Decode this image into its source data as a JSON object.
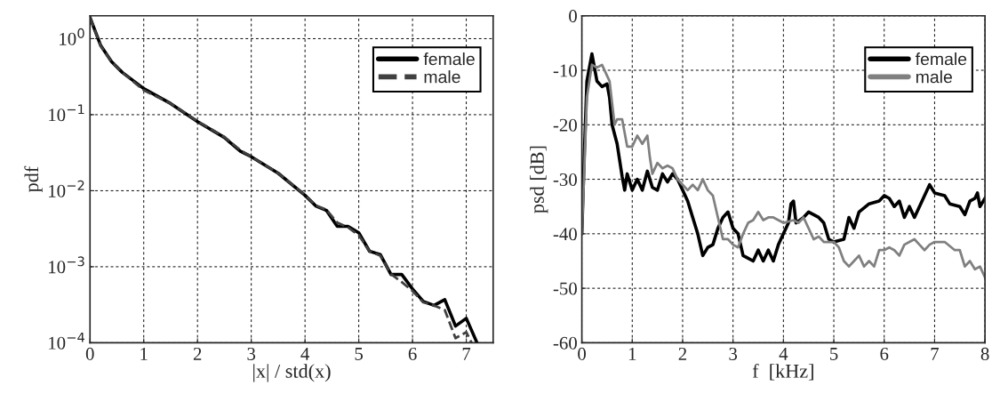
{
  "chart_data": [
    {
      "type": "line",
      "xlabel": "|x| / std(x)",
      "ylabel": "pdf",
      "log": "y",
      "grid": true,
      "legend": "top right",
      "xlim": [
        0,
        7.5
      ],
      "ylim": [
        0.0001,
        2
      ],
      "xticks": [
        0,
        1,
        2,
        3,
        4,
        5,
        6,
        7
      ],
      "yticks": [
        {
          "value": 1,
          "label": "10$^{0}$"
        },
        {
          "value": 0.1,
          "label": "10$^{−1}$"
        },
        {
          "value": 0.01,
          "label": "10$^{−2}$"
        },
        {
          "value": 0.001,
          "label": "10$^{−3}$"
        },
        {
          "value": 0.0001,
          "label": "10$^{−4}$"
        }
      ],
      "series": [
        {
          "name": "female",
          "color": "#000000",
          "line_style": "solid",
          "x": [
            0,
            0.2,
            0.4,
            0.6,
            1.0,
            1.5,
            2.0,
            2.5,
            2.8,
            3.0,
            3.5,
            4.0,
            4.2,
            4.4,
            4.6,
            4.8,
            5.0,
            5.2,
            5.4,
            5.6,
            5.8,
            6.0,
            6.2,
            6.4,
            6.6,
            6.8,
            7.0,
            7.2
          ],
          "values": [
            1.9,
            0.81,
            0.5,
            0.36,
            0.22,
            0.14,
            0.081,
            0.05,
            0.033,
            0.028,
            0.017,
            0.0087,
            0.0063,
            0.0055,
            0.0034,
            0.0034,
            0.0028,
            0.0016,
            0.00145,
            0.00079,
            0.00079,
            0.00051,
            0.00035,
            0.00031,
            0.00037,
            0.000166,
            0.00021,
            0.0001
          ]
        },
        {
          "name": "male",
          "color": "#404040",
          "line_style": "dashed",
          "x": [
            0,
            0.2,
            0.4,
            0.6,
            1.0,
            1.5,
            2.0,
            2.5,
            2.8,
            3.0,
            3.5,
            4.0,
            4.2,
            4.4,
            4.6,
            4.8,
            5.0,
            5.2,
            5.4,
            5.6,
            5.8,
            6.0,
            6.2,
            6.4,
            6.6,
            6.8,
            7.0,
            7.1
          ],
          "values": [
            1.9,
            0.8,
            0.5,
            0.36,
            0.21,
            0.14,
            0.082,
            0.051,
            0.034,
            0.028,
            0.017,
            0.0088,
            0.0064,
            0.0056,
            0.0038,
            0.0033,
            0.0026,
            0.0016,
            0.0014,
            0.0008,
            0.00063,
            0.00048,
            0.00034,
            0.00031,
            0.00027,
            0.000115,
            0.000138,
            0.0001
          ]
        }
      ]
    },
    {
      "type": "line",
      "xlabel": "f  [kHz]",
      "ylabel": "psd [dB]",
      "grid": true,
      "legend": "top right",
      "xlim": [
        0,
        8
      ],
      "ylim": [
        -60,
        0
      ],
      "xticks": [
        0,
        1,
        2,
        3,
        4,
        5,
        6,
        7,
        8
      ],
      "yticks": [
        -60,
        -50,
        -40,
        -30,
        -20,
        -10,
        0
      ],
      "series": [
        {
          "name": "female",
          "color": "#000000",
          "line_style": "solid",
          "x": [
            0,
            0.05,
            0.1,
            0.2,
            0.3,
            0.4,
            0.5,
            0.55,
            0.6,
            0.7,
            0.8,
            0.85,
            0.9,
            1.0,
            1.1,
            1.2,
            1.3,
            1.4,
            1.5,
            1.6,
            1.7,
            1.8,
            1.9,
            2.0,
            2.1,
            2.2,
            2.3,
            2.4,
            2.5,
            2.6,
            2.7,
            2.8,
            2.9,
            3.0,
            3.1,
            3.2,
            3.3,
            3.4,
            3.5,
            3.6,
            3.7,
            3.8,
            3.9,
            4.0,
            4.1,
            4.15,
            4.2,
            4.25,
            4.4,
            4.5,
            4.7,
            4.8,
            4.9,
            5.0,
            5.2,
            5.3,
            5.4,
            5.5,
            5.7,
            5.9,
            6.0,
            6.1,
            6.2,
            6.3,
            6.4,
            6.5,
            6.6,
            6.7,
            6.8,
            6.9,
            7.0,
            7.2,
            7.3,
            7.5,
            7.6,
            7.7,
            7.8,
            7.85,
            7.9,
            8.0
          ],
          "values": [
            -40,
            -25,
            -12,
            -7,
            -12,
            -13,
            -12.5,
            -15,
            -20,
            -23.5,
            -29.5,
            -32,
            -29,
            -32,
            -30,
            -32,
            -28.5,
            -31.5,
            -32,
            -29,
            -30.5,
            -29,
            -30,
            -32,
            -34,
            -37,
            -40,
            -44,
            -42.5,
            -42,
            -39,
            -37,
            -36,
            -39,
            -40,
            -44,
            -44.5,
            -45,
            -43,
            -45,
            -43,
            -45,
            -42,
            -40,
            -38,
            -34.5,
            -34,
            -38,
            -37,
            -36,
            -37,
            -38,
            -41,
            -41.5,
            -41,
            -37,
            -39,
            -36,
            -34.5,
            -34,
            -33,
            -33.5,
            -35,
            -34,
            -37,
            -35,
            -37,
            -35,
            -33,
            -31,
            -32.5,
            -33,
            -34.5,
            -35,
            -36.5,
            -34,
            -33.5,
            -32.5,
            -35,
            -33.5
          ]
        },
        {
          "name": "male",
          "color": "#808080",
          "line_style": "solid",
          "x": [
            0,
            0.05,
            0.1,
            0.2,
            0.3,
            0.4,
            0.5,
            0.55,
            0.6,
            0.65,
            0.7,
            0.8,
            0.9,
            1.0,
            1.1,
            1.2,
            1.3,
            1.35,
            1.4,
            1.5,
            1.6,
            1.7,
            1.8,
            1.9,
            2.0,
            2.1,
            2.2,
            2.3,
            2.4,
            2.5,
            2.6,
            2.7,
            2.8,
            2.9,
            3.0,
            3.1,
            3.2,
            3.3,
            3.4,
            3.5,
            3.6,
            3.7,
            3.8,
            3.9,
            4.0,
            4.2,
            4.3,
            4.4,
            4.5,
            4.6,
            4.7,
            4.8,
            5.0,
            5.1,
            5.2,
            5.3,
            5.4,
            5.5,
            5.6,
            5.7,
            5.8,
            5.9,
            6.0,
            6.1,
            6.2,
            6.3,
            6.4,
            6.5,
            6.6,
            6.7,
            6.8,
            6.9,
            7.0,
            7.2,
            7.4,
            7.5,
            7.6,
            7.7,
            7.8,
            7.9,
            8.0
          ],
          "values": [
            -40,
            -28,
            -15,
            -9,
            -9.5,
            -9,
            -11,
            -12,
            -16,
            -20,
            -19,
            -19,
            -24,
            -24,
            -22,
            -23.5,
            -22,
            -26,
            -29,
            -27,
            -28,
            -27.5,
            -28,
            -30,
            -31,
            -32,
            -31,
            -32,
            -30,
            -32,
            -33,
            -37,
            -41,
            -41,
            -42,
            -42.5,
            -40,
            -38,
            -37.5,
            -36,
            -37.5,
            -37,
            -37,
            -37.5,
            -38,
            -37.5,
            -38,
            -37,
            -39,
            -41,
            -40.5,
            -41.5,
            -41.5,
            -42.5,
            -45,
            -46,
            -45,
            -44,
            -46,
            -45,
            -46,
            -43,
            -43,
            -42.5,
            -43,
            -44,
            -42,
            -41.5,
            -41,
            -42,
            -43,
            -42,
            -41.5,
            -41.5,
            -43,
            -43,
            -46,
            -45,
            -46.5,
            -46,
            -48
          ]
        }
      ]
    }
  ]
}
